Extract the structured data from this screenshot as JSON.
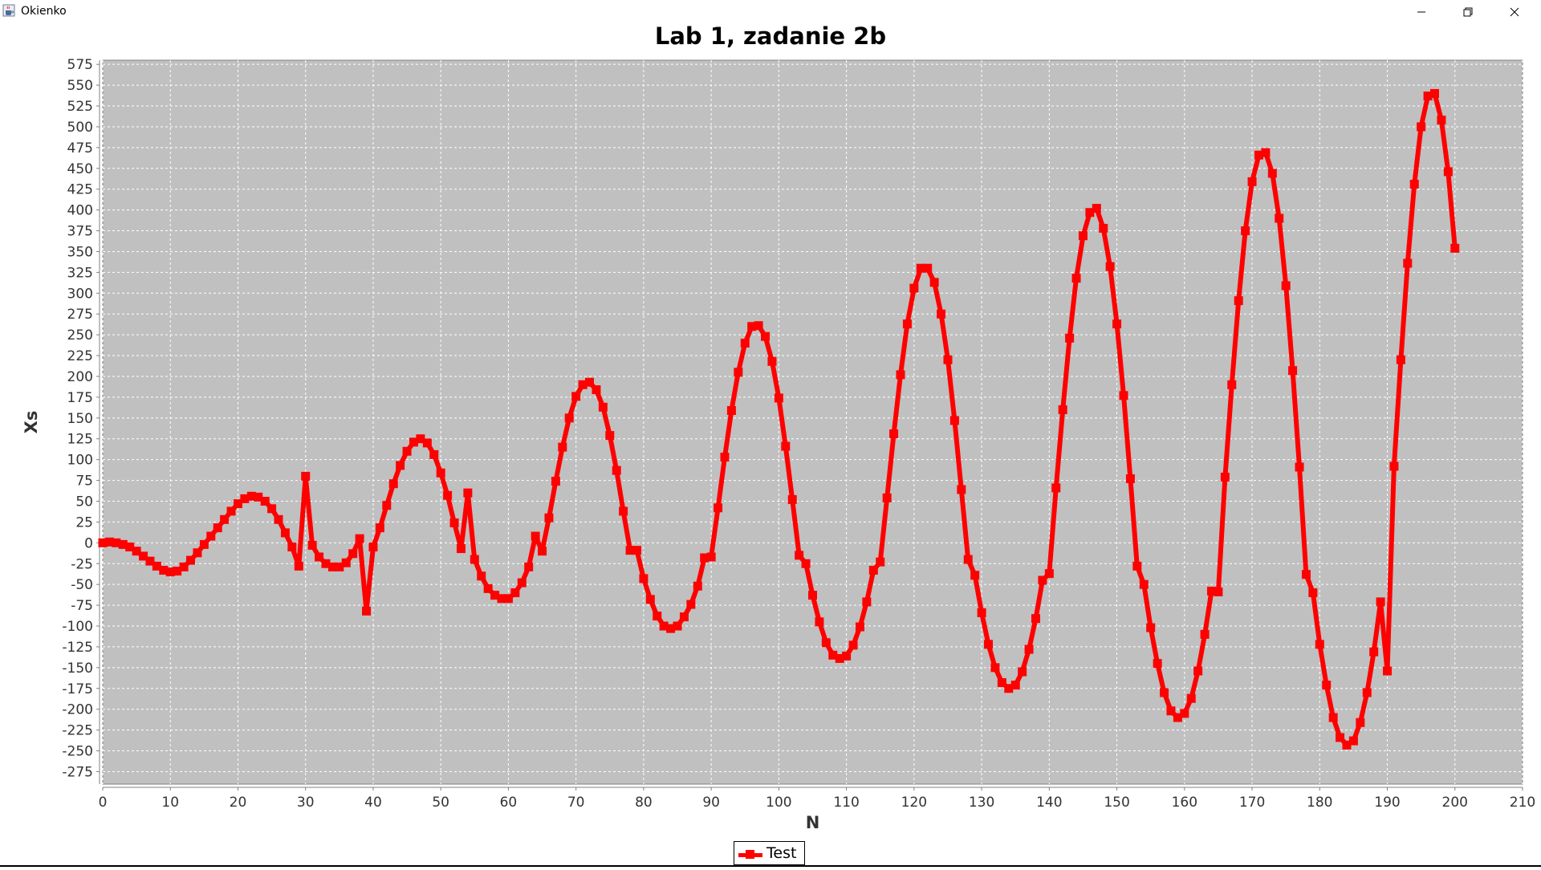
{
  "window": {
    "title": "Okienko",
    "icons": {
      "app": "java-cup-icon",
      "minimize": "minimize-icon",
      "maximize": "restore-icon",
      "close": "close-icon"
    }
  },
  "chart_data": {
    "type": "line",
    "title": "Lab 1, zadanie 2b",
    "xlabel": "N",
    "ylabel": "Xs",
    "xlim": [
      0,
      210
    ],
    "ylim": [
      -290,
      580
    ],
    "xticks": [
      0,
      10,
      20,
      30,
      40,
      50,
      60,
      70,
      80,
      90,
      100,
      110,
      120,
      130,
      140,
      150,
      160,
      170,
      180,
      190,
      200,
      210
    ],
    "yticks": [
      -275,
      -250,
      -225,
      -200,
      -175,
      -150,
      -125,
      -100,
      -75,
      -50,
      -25,
      0,
      25,
      50,
      75,
      100,
      125,
      150,
      175,
      200,
      225,
      250,
      275,
      300,
      325,
      350,
      375,
      400,
      425,
      450,
      475,
      500,
      525,
      550,
      575
    ],
    "grid": true,
    "plot_background": "#c0c0c0",
    "legend_position": "bottom-center",
    "series": [
      {
        "name": "Test",
        "color": "#ff0000",
        "marker": "square",
        "x": [
          0,
          1,
          2,
          3,
          4,
          5,
          6,
          7,
          8,
          9,
          10,
          11,
          12,
          13,
          14,
          15,
          16,
          17,
          18,
          19,
          20,
          21,
          22,
          23,
          24,
          25,
          26,
          27,
          28,
          29,
          30,
          31,
          32,
          33,
          34,
          35,
          36,
          37,
          38,
          39,
          40,
          41,
          42,
          43,
          44,
          45,
          46,
          47,
          48,
          49,
          50,
          51,
          52,
          53,
          54,
          55,
          56,
          57,
          58,
          59,
          60,
          61,
          62,
          63,
          64,
          65,
          66,
          67,
          68,
          69,
          70,
          71,
          72,
          73,
          74,
          75,
          76,
          77,
          78,
          79,
          80,
          81,
          82,
          83,
          84,
          85,
          86,
          87,
          88,
          89,
          90,
          91,
          92,
          93,
          94,
          95,
          96,
          97,
          98,
          99,
          100,
          101,
          102,
          103,
          104,
          105,
          106,
          107,
          108,
          109,
          110,
          111,
          112,
          113,
          114,
          115,
          116,
          117,
          118,
          119,
          120,
          121,
          122,
          123,
          124,
          125,
          126,
          127,
          128,
          129,
          130,
          131,
          132,
          133,
          134,
          135,
          136,
          137,
          138,
          139,
          140,
          141,
          142,
          143,
          144,
          145,
          146,
          147,
          148,
          149,
          150,
          151,
          152,
          153,
          154,
          155,
          156,
          157,
          158,
          159,
          160,
          161,
          162,
          163,
          164,
          165,
          166,
          167,
          168,
          169,
          170,
          171,
          172,
          173,
          174,
          175,
          176,
          177,
          178,
          179,
          180,
          181,
          182,
          183,
          184,
          185,
          186,
          187,
          188,
          189,
          190,
          191,
          192,
          193,
          194,
          195,
          196,
          197,
          198,
          199,
          200
        ],
        "y": [
          0,
          1,
          0,
          -2,
          -5,
          -10,
          -16,
          -22,
          -28,
          -33,
          -35,
          -34,
          -29,
          -21,
          -12,
          -2,
          8,
          18,
          28,
          38,
          47,
          53,
          56,
          55,
          50,
          41,
          28,
          12,
          -5,
          -28,
          80,
          -3,
          -17,
          -25,
          -29,
          -29,
          -24,
          -13,
          5,
          -82,
          -5,
          18,
          45,
          71,
          93,
          110,
          121,
          125,
          120,
          106,
          84,
          57,
          24,
          -7,
          60,
          -20,
          -40,
          -55,
          -63,
          -67,
          -67,
          -60,
          -48,
          -29,
          8,
          -10,
          30,
          74,
          115,
          150,
          176,
          190,
          193,
          184,
          163,
          129,
          87,
          38,
          -9,
          -9,
          -43,
          -68,
          -88,
          -100,
          -103,
          -100,
          -89,
          -74,
          -52,
          -18,
          -17,
          42,
          103,
          159,
          205,
          240,
          260,
          261,
          248,
          218,
          174,
          116,
          52,
          -15,
          -25,
          -63,
          -95,
          -120,
          -135,
          -139,
          -136,
          -123,
          -101,
          -71,
          -33,
          -23,
          54,
          131,
          202,
          263,
          306,
          330,
          330,
          313,
          275,
          220,
          147,
          64,
          -20,
          -39,
          -84,
          -122,
          -150,
          -168,
          -175,
          -171,
          -155,
          -128,
          -91,
          -45,
          -37,
          66,
          160,
          246,
          318,
          369,
          397,
          402,
          378,
          332,
          263,
          177,
          77,
          -28,
          -50,
          -102,
          -145,
          -180,
          -202,
          -210,
          -205,
          -187,
          -154,
          -110,
          -58,
          -59,
          79,
          190,
          291,
          375,
          434,
          466,
          469,
          444,
          390,
          309,
          207,
          91,
          -38,
          -60,
          -122,
          -171,
          -210,
          -234,
          -243,
          -238,
          -216,
          -180,
          -131,
          -71,
          -154,
          92,
          220,
          336,
          431,
          500,
          537,
          540,
          508,
          446,
          354
        ]
      }
    ]
  }
}
